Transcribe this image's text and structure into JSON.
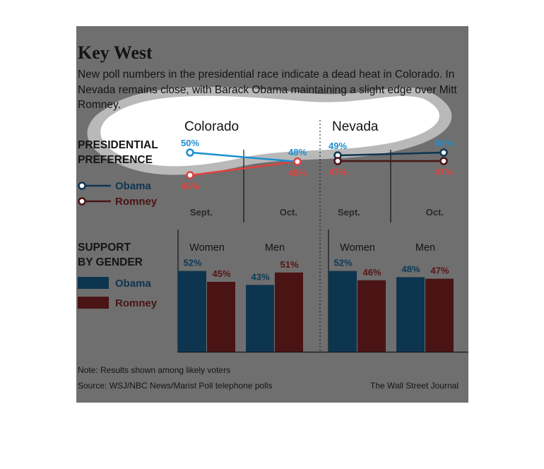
{
  "chart": {
    "title": "Key West",
    "subtitle": "New poll numbers in the presidential race indicate a dead heat in Colorado. In Nevada remains close, with Barack Obama maintaining a slight edge over Mitt Romney.",
    "section_preference": [
      "PRESIDENTIAL",
      "PREFERENCE"
    ],
    "section_gender": [
      "SUPPORT",
      "BY GENDER"
    ],
    "note": "Note: Results shown among likely voters",
    "source": "Source: WSJ/NBC News/Marist Poll telephone polls",
    "credit": "The Wall Street Journal"
  },
  "legend": [
    {
      "name": "Obama",
      "color_line": "#1b8fd0",
      "color_bar": "#0e3550"
    },
    {
      "name": "Romney",
      "color_line": "#e0413f",
      "color_bar": "#4a1414"
    }
  ],
  "colors": {
    "card_background": "#6f6f6f",
    "highlight_background": "#ffffff",
    "obama_label_highlight": "#1b8fd0",
    "romney_label_highlight": "#e0413f",
    "obama_label_dark": "#0a3a5a",
    "romney_label_dark": "#5b1414"
  },
  "chart_data": [
    {
      "type": "line",
      "title": "Colorado",
      "x": [
        "Sept.",
        "Oct."
      ],
      "series": [
        {
          "name": "Obama",
          "values": [
            50,
            48
          ]
        },
        {
          "name": "Romney",
          "values": [
            45,
            48
          ]
        }
      ]
    },
    {
      "type": "line",
      "title": "Nevada",
      "x": [
        "Sept.",
        "Oct."
      ],
      "series": [
        {
          "name": "Obama",
          "values": [
            49,
            50
          ]
        },
        {
          "name": "Romney",
          "values": [
            47,
            47
          ]
        }
      ]
    },
    {
      "type": "bar",
      "title": "Colorado",
      "categories": [
        "Women",
        "Men"
      ],
      "series": [
        {
          "name": "Obama",
          "values": [
            52,
            43
          ]
        },
        {
          "name": "Romney",
          "values": [
            45,
            51
          ]
        }
      ]
    },
    {
      "type": "bar",
      "title": "Nevada",
      "categories": [
        "Women",
        "Men"
      ],
      "series": [
        {
          "name": "Obama",
          "values": [
            52,
            48
          ]
        },
        {
          "name": "Romney",
          "values": [
            46,
            47
          ]
        }
      ]
    }
  ]
}
